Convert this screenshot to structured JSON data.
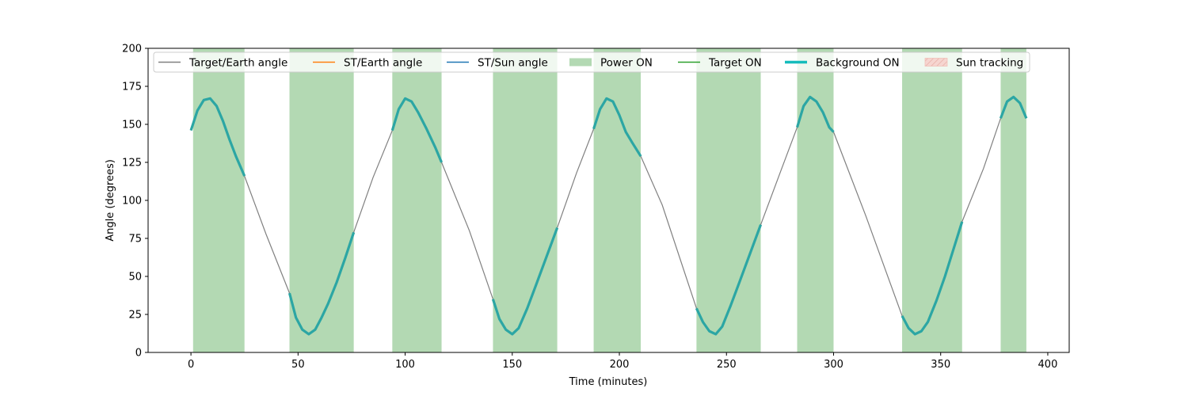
{
  "chart_data": {
    "type": "line",
    "title": "",
    "xlabel": "Time (minutes)",
    "ylabel": "Angle (degrees)",
    "xlim": [
      -20,
      410
    ],
    "ylim": [
      0,
      200
    ],
    "xticks": [
      0,
      50,
      100,
      150,
      200,
      250,
      300,
      350,
      400
    ],
    "yticks": [
      0,
      25,
      50,
      75,
      100,
      125,
      150,
      175,
      200
    ],
    "grid": false,
    "legend_position": "top",
    "colors": {
      "target_earth": "#808080",
      "st_earth": "#ff7f0e",
      "st_sun": "#1f77b4",
      "power_on": "#b3d9b3",
      "target_on": "#2ca02c",
      "background_on": "#2ca6a4",
      "sun_tracking": "#f4cccc"
    },
    "legend": [
      {
        "key": "target_earth",
        "label": "Target/Earth angle",
        "kind": "line"
      },
      {
        "key": "st_earth",
        "label": "ST/Earth angle",
        "kind": "line"
      },
      {
        "key": "st_sun",
        "label": "ST/Sun angle",
        "kind": "line"
      },
      {
        "key": "power_on",
        "label": "Power ON",
        "kind": "patch"
      },
      {
        "key": "target_on",
        "label": "Target ON",
        "kind": "line"
      },
      {
        "key": "background_on",
        "label": "Background ON",
        "kind": "thickline"
      },
      {
        "key": "sun_tracking",
        "label": "Sun tracking",
        "kind": "hatch"
      }
    ],
    "power_on_intervals": [
      [
        1,
        25
      ],
      [
        46,
        76
      ],
      [
        94,
        117
      ],
      [
        141,
        171
      ],
      [
        188,
        210
      ],
      [
        236,
        266
      ],
      [
        283,
        300
      ],
      [
        332,
        360
      ],
      [
        378,
        390
      ]
    ],
    "target_earth_series": {
      "name": "Target/Earth angle",
      "x": [
        0,
        3,
        6,
        9,
        12,
        15,
        18,
        21,
        25,
        35,
        46,
        49,
        52,
        55,
        58,
        61,
        64,
        68,
        72,
        76,
        85,
        94,
        97,
        100,
        103,
        106,
        110,
        114,
        117,
        130,
        141,
        144,
        147,
        150,
        153,
        157,
        161,
        166,
        171,
        180,
        188,
        191,
        194,
        197,
        200,
        203,
        206,
        210,
        220,
        236,
        239,
        242,
        245,
        248,
        252,
        256,
        261,
        266,
        275,
        283,
        286,
        289,
        292,
        295,
        298,
        300,
        315,
        332,
        335,
        338,
        341,
        344,
        348,
        352,
        356,
        360,
        370,
        378,
        381,
        384,
        387,
        390
      ],
      "y": [
        146,
        159,
        166,
        167,
        162,
        152,
        140,
        129,
        116,
        78,
        39,
        23,
        15,
        12,
        15,
        23,
        32,
        46,
        62,
        79,
        115,
        146,
        160,
        167,
        165,
        158,
        147,
        135,
        125,
        80,
        35,
        22,
        15,
        12,
        16,
        29,
        44,
        63,
        82,
        118,
        147,
        160,
        167,
        165,
        156,
        145,
        138,
        129,
        97,
        29,
        20,
        14,
        12,
        17,
        31,
        46,
        65,
        84,
        118,
        148,
        162,
        168,
        165,
        158,
        148,
        145,
        90,
        24,
        16,
        12,
        14,
        20,
        34,
        50,
        68,
        86,
        121,
        154,
        165,
        168,
        164,
        154
      ]
    }
  }
}
